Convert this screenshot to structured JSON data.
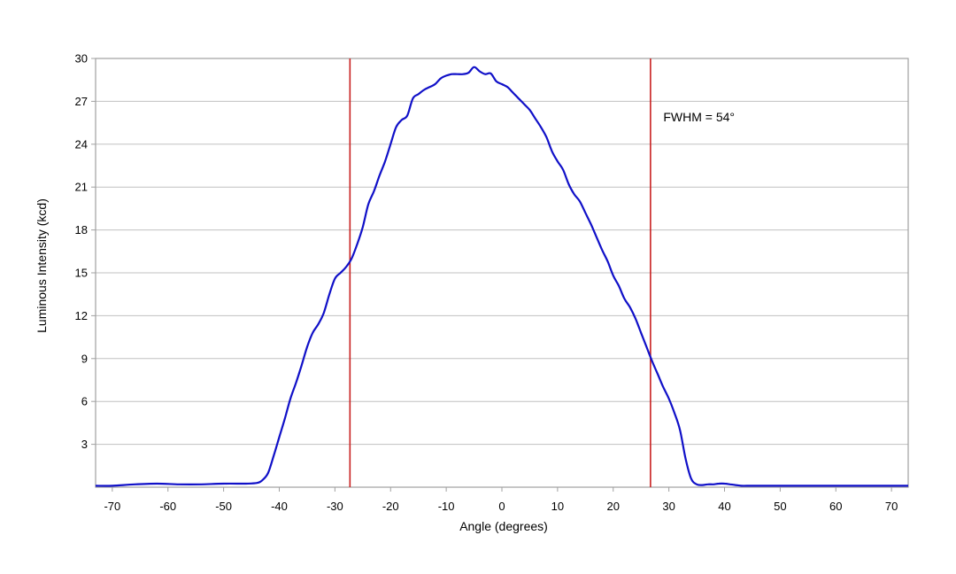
{
  "chart_data": {
    "type": "line",
    "title": "",
    "xlabel": "Angle (degrees)",
    "ylabel": "Luminous Intensity (kcd)",
    "xlim": [
      -73,
      73
    ],
    "ylim": [
      0,
      30
    ],
    "x_ticks": [
      -70,
      -60,
      -50,
      -40,
      -30,
      -20,
      -10,
      0,
      10,
      20,
      30,
      40,
      50,
      60,
      70
    ],
    "y_ticks": [
      3,
      6,
      9,
      12,
      15,
      18,
      21,
      24,
      27,
      30
    ],
    "grid": "horizontal",
    "legend": "none",
    "colors": {
      "series": "#1010c8",
      "markers": "#c82020",
      "grid": "#c0c0c0",
      "frame": "#a0a0a0"
    },
    "series": [
      {
        "x": [
          -73,
          -70,
          -66,
          -62,
          -58,
          -54,
          -50,
          -46,
          -44,
          -43,
          -42,
          -41,
          -40,
          -39,
          -38,
          -37,
          -36,
          -35,
          -34,
          -33,
          -32,
          -31,
          -30,
          -29,
          -28,
          -27,
          -26,
          -25,
          -24,
          -23,
          -22,
          -21,
          -20,
          -19,
          -18,
          -17,
          -16,
          -15,
          -14,
          -13,
          -12,
          -11,
          -10,
          -9,
          -8,
          -7,
          -6,
          -5,
          -4,
          -3,
          -2,
          -1,
          0,
          1,
          2,
          3,
          4,
          5,
          6,
          7,
          8,
          9,
          10,
          11,
          12,
          13,
          14,
          15,
          16,
          17,
          18,
          19,
          20,
          21,
          22,
          23,
          24,
          25,
          26,
          27,
          28,
          29,
          30,
          31,
          32,
          33,
          34,
          35,
          36,
          37,
          38,
          39,
          40,
          41,
          42,
          43,
          44,
          46,
          50,
          54,
          58,
          62,
          66,
          70,
          73
        ],
        "y": [
          0.1,
          0.1,
          0.2,
          0.25,
          0.2,
          0.2,
          0.25,
          0.25,
          0.3,
          0.5,
          1.0,
          2.2,
          3.5,
          4.8,
          6.2,
          7.3,
          8.5,
          9.8,
          10.8,
          11.4,
          12.2,
          13.5,
          14.6,
          15.0,
          15.4,
          16.0,
          17.0,
          18.2,
          19.8,
          20.7,
          21.8,
          22.8,
          24.0,
          25.2,
          25.7,
          26.0,
          27.2,
          27.5,
          27.8,
          28.0,
          28.2,
          28.6,
          28.8,
          28.9,
          28.9,
          28.9,
          29.0,
          29.4,
          29.1,
          28.9,
          28.95,
          28.4,
          28.2,
          28.0,
          27.6,
          27.2,
          26.8,
          26.4,
          25.8,
          25.2,
          24.5,
          23.5,
          22.8,
          22.2,
          21.2,
          20.5,
          20.0,
          19.2,
          18.4,
          17.5,
          16.6,
          15.8,
          14.8,
          14.1,
          13.2,
          12.6,
          11.8,
          10.8,
          9.8,
          8.8,
          7.9,
          7.0,
          6.2,
          5.2,
          4.0,
          2.0,
          0.6,
          0.2,
          0.15,
          0.2,
          0.2,
          0.25,
          0.25,
          0.2,
          0.15,
          0.1,
          0.1,
          0.1,
          0.1,
          0.1,
          0.1,
          0.1,
          0.1,
          0.1,
          0.1
        ]
      }
    ],
    "reference_lines_x": [
      -27.3,
      26.7
    ],
    "annotations": [
      {
        "text": "FWHM = 54°",
        "x": 29,
        "y": 25.6
      }
    ]
  }
}
